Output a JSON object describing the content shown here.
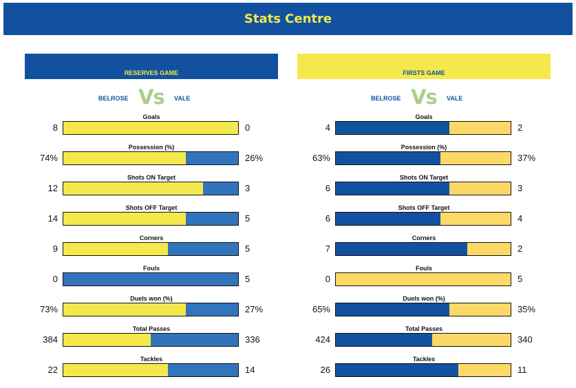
{
  "header": {
    "title": "Stats Centre"
  },
  "colors": {
    "navy": "#1251a0",
    "yellow": "#f5e84d",
    "reserves_home": "#f5e84d",
    "reserves_away": "#3274bb",
    "firsts_home": "#1251a0",
    "firsts_away": "#fcd966",
    "vs": "#a9cf8c"
  },
  "panels": [
    {
      "id": "reserves",
      "title": "RESERVES GAME",
      "home_team": "BELROSE",
      "vs": "Vs",
      "away_team": "VALE",
      "stats": [
        {
          "label": "Goals",
          "home": "8",
          "away": "0",
          "home_share": 1.0
        },
        {
          "label": "Possession (%)",
          "home": "74%",
          "away": "26%",
          "home_share": 0.7
        },
        {
          "label": "Shots ON Target",
          "home": "12",
          "away": "3",
          "home_share": 0.8
        },
        {
          "label": "Shots OFF Target",
          "home": "14",
          "away": "5",
          "home_share": 0.7
        },
        {
          "label": "Corners",
          "home": "9",
          "away": "5",
          "home_share": 0.6
        },
        {
          "label": "Fouls",
          "home": "0",
          "away": "5",
          "home_share": 0.0
        },
        {
          "label": "Duels won (%)",
          "home": "73%",
          "away": "27%",
          "home_share": 0.7
        },
        {
          "label": "Total Passes",
          "home": "384",
          "away": "336",
          "home_share": 0.5
        },
        {
          "label": "Tackles",
          "home": "22",
          "away": "14",
          "home_share": 0.6
        }
      ]
    },
    {
      "id": "firsts",
      "title": "FIRSTS GAME",
      "home_team": "BELROSE",
      "vs": "Vs",
      "away_team": "VALE",
      "stats": [
        {
          "label": "Goals",
          "home": "4",
          "away": "2",
          "home_share": 0.65
        },
        {
          "label": "Possession (%)",
          "home": "63%",
          "away": "37%",
          "home_share": 0.6
        },
        {
          "label": "Shots ON Target",
          "home": "6",
          "away": "3",
          "home_share": 0.65
        },
        {
          "label": "Shots OFF Target",
          "home": "6",
          "away": "4",
          "home_share": 0.6
        },
        {
          "label": "Corners",
          "home": "7",
          "away": "2",
          "home_share": 0.75
        },
        {
          "label": "Fouls",
          "home": "0",
          "away": "5",
          "home_share": 0.0
        },
        {
          "label": "Duels won (%)",
          "home": "65%",
          "away": "35%",
          "home_share": 0.65
        },
        {
          "label": "Total Passes",
          "home": "424",
          "away": "340",
          "home_share": 0.55
        },
        {
          "label": "Tackles",
          "home": "26",
          "away": "11",
          "home_share": 0.7
        }
      ]
    }
  ]
}
